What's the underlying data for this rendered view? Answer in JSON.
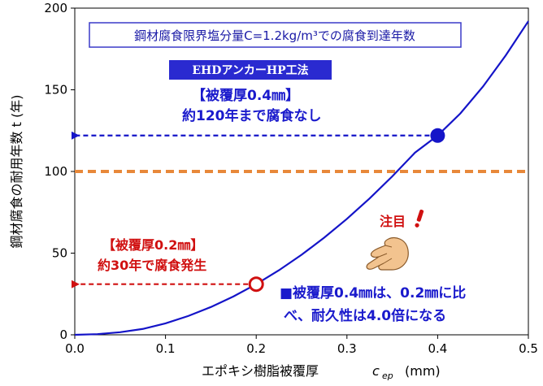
{
  "chart_data": {
    "type": "line",
    "title": "鋼材腐食限界塩分量C=1.2kg/m³での腐食到達年数",
    "xlabel": "エポキシ樹脂被覆厚",
    "xlabel_symbol": "c",
    "xlabel_subscript": "ep",
    "xlabel_unit": "(mm)",
    "ylabel": "鋼材腐食の耐用年数 t (年)",
    "xlim": [
      0,
      0.5
    ],
    "ylim": [
      0,
      200
    ],
    "xticks": [
      "0.0",
      "0.1",
      "0.2",
      "0.3",
      "0.4",
      "0.5"
    ],
    "yticks": [
      "0",
      "50",
      "100",
      "150",
      "200"
    ],
    "grid": false,
    "series": [
      {
        "color": "#1414c8",
        "x": [
          0,
          0.025,
          0.05,
          0.075,
          0.1,
          0.125,
          0.15,
          0.175,
          0.2,
          0.225,
          0.25,
          0.275,
          0.3,
          0.325,
          0.35,
          0.375,
          0.4,
          0.425,
          0.45,
          0.475,
          0.5
        ],
        "y": [
          0,
          0.4,
          1.6,
          3.6,
          7.0,
          11.5,
          17.0,
          23.5,
          31.0,
          39.5,
          49.0,
          59.5,
          71.0,
          83.5,
          97.0,
          111.5,
          122.0,
          135.5,
          152.0,
          171.0,
          192.0
        ]
      }
    ],
    "reference_line": {
      "y": 100,
      "color": "#e8883a"
    },
    "highlight_points": [
      {
        "x": 0.4,
        "y": 122,
        "color": "#1414c8",
        "style": "filled"
      },
      {
        "x": 0.2,
        "y": 31,
        "color": "#d01010",
        "style": "open"
      }
    ],
    "arrows": [
      {
        "from_x": 0.4,
        "to_x": 0,
        "y": 122,
        "color": "#1414c8"
      },
      {
        "from_x": 0.2,
        "to_x": 0,
        "y": 31,
        "color": "#d01010"
      }
    ]
  },
  "annotations": {
    "ehd_label": "EHDアンカーHP工法",
    "blue_line1": "【被覆厚0.4㎜】",
    "blue_line2": "約120年まで腐食なし",
    "red_line1": "【被覆厚0.2㎜】",
    "red_line2": "約30年で腐食発生",
    "note": "注目",
    "conclusion_line1": "■被覆厚0.4㎜は、0.2㎜に比",
    "conclusion_line2": "べ、耐久性は4.0倍になる"
  },
  "colors": {
    "curve": "#1414c8",
    "reference": "#e8883a",
    "accent_red": "#d01010",
    "ehd_bg": "#2a2ad0",
    "title_border": "#3a3ac8",
    "hand_fill": "#f2c38f"
  },
  "icons": {
    "pointing_hand": "pointing-hand-icon",
    "exclamation": "exclamation-icon"
  }
}
